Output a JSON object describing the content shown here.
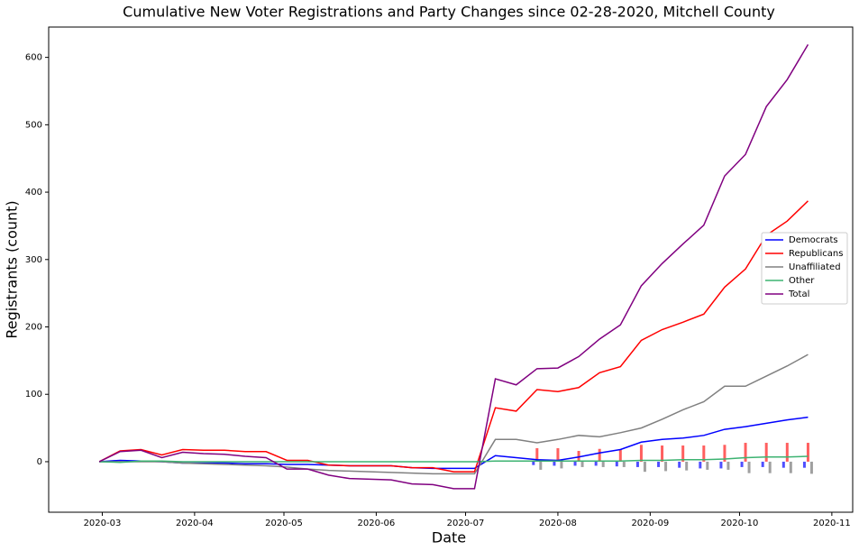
{
  "chart_data": {
    "type": "line",
    "title": "Cumulative New Voter Registrations and Party Changes since 02-28-2020, Mitchell County",
    "xlabel": "Date",
    "ylabel": "Registrants (count)",
    "x": [
      "2020-02-29",
      "2020-03-07",
      "2020-03-14",
      "2020-03-21",
      "2020-03-28",
      "2020-04-04",
      "2020-04-11",
      "2020-04-18",
      "2020-04-25",
      "2020-05-02",
      "2020-05-09",
      "2020-05-16",
      "2020-05-23",
      "2020-05-30",
      "2020-06-06",
      "2020-06-13",
      "2020-06-20",
      "2020-06-27",
      "2020-07-04",
      "2020-07-11",
      "2020-07-18",
      "2020-07-25",
      "2020-08-01",
      "2020-08-08",
      "2020-08-15",
      "2020-08-22",
      "2020-08-29",
      "2020-09-05",
      "2020-09-12",
      "2020-09-19",
      "2020-09-26",
      "2020-10-03",
      "2020-10-10",
      "2020-10-17",
      "2020-10-24"
    ],
    "series": [
      {
        "name": "Democrats",
        "color": "#0000ff",
        "values": [
          0,
          2,
          1,
          0,
          -2,
          -2,
          -2,
          -3,
          -3,
          -4,
          -4,
          -5,
          -6,
          -6,
          -6,
          -9,
          -10,
          -10,
          -10,
          9,
          6,
          3,
          2,
          7,
          13,
          18,
          29,
          33,
          35,
          39,
          48,
          52,
          57,
          62,
          66
        ]
      },
      {
        "name": "Republicans",
        "color": "#ff0000",
        "values": [
          0,
          16,
          18,
          10,
          18,
          17,
          17,
          15,
          15,
          2,
          2,
          -5,
          -6,
          -6,
          -6,
          -9,
          -9,
          -15,
          -15,
          80,
          75,
          107,
          104,
          110,
          132,
          141,
          180,
          196,
          207,
          219,
          259,
          286,
          336,
          357,
          387
        ]
      },
      {
        "name": "Unaffiliated",
        "color": "#808080",
        "values": [
          0,
          0,
          0,
          0,
          -2,
          -3,
          -4,
          -5,
          -6,
          -8,
          -11,
          -13,
          -14,
          -15,
          -16,
          -17,
          -18,
          -18,
          -18,
          33,
          33,
          28,
          33,
          39,
          37,
          43,
          50,
          63,
          77,
          89,
          112,
          112,
          127,
          142,
          159
        ]
      },
      {
        "name": "Other",
        "color": "#3cb371",
        "values": [
          0,
          -1,
          1,
          1,
          0,
          0,
          0,
          0,
          0,
          0,
          0,
          0,
          0,
          0,
          0,
          0,
          0,
          0,
          0,
          1,
          1,
          1,
          1,
          1,
          1,
          1,
          2,
          2,
          3,
          3,
          4,
          6,
          7,
          7,
          8
        ]
      },
      {
        "name": "Total",
        "color": "#800080",
        "values": [
          0,
          15,
          17,
          6,
          14,
          12,
          11,
          8,
          6,
          -11,
          -11,
          -20,
          -25,
          -26,
          -27,
          -33,
          -34,
          -40,
          -40,
          123,
          114,
          138,
          139,
          156,
          182,
          203,
          261,
          294,
          323,
          351,
          424,
          456,
          527,
          567,
          619
        ]
      }
    ],
    "bars": {
      "x": [
        "2020-07-25",
        "2020-08-01",
        "2020-08-08",
        "2020-08-15",
        "2020-08-22",
        "2020-08-29",
        "2020-09-05",
        "2020-09-12",
        "2020-09-19",
        "2020-09-26",
        "2020-10-03",
        "2020-10-10",
        "2020-10-17",
        "2020-10-24"
      ],
      "series": [
        {
          "color": "#4f4fff",
          "values": [
            -5,
            -6,
            -6,
            -6,
            -7,
            -8,
            -8,
            -9,
            -10,
            -10,
            -8,
            -8,
            -9,
            -9
          ]
        },
        {
          "color": "#ff5f5f",
          "values": [
            20,
            20,
            16,
            19,
            18,
            25,
            24,
            24,
            24,
            25,
            28,
            28,
            28,
            28
          ]
        },
        {
          "color": "#a0a0a0",
          "values": [
            -12,
            -10,
            -8,
            -8,
            -8,
            -15,
            -14,
            -13,
            -12,
            -12,
            -17,
            -17,
            -17,
            -18
          ]
        }
      ]
    },
    "xlim": [
      "2020-02-12",
      "2020-11-08"
    ],
    "xticks": [
      {
        "value": "2020-03-01",
        "label": "2020-03"
      },
      {
        "value": "2020-04-01",
        "label": "2020-04"
      },
      {
        "value": "2020-05-01",
        "label": "2020-05"
      },
      {
        "value": "2020-06-01",
        "label": "2020-06"
      },
      {
        "value": "2020-07-01",
        "label": "2020-07"
      },
      {
        "value": "2020-08-01",
        "label": "2020-08"
      },
      {
        "value": "2020-09-01",
        "label": "2020-09"
      },
      {
        "value": "2020-10-01",
        "label": "2020-10"
      },
      {
        "value": "2020-11-01",
        "label": "2020-11"
      }
    ],
    "ylim": [
      -75,
      645
    ],
    "yticks": [
      0,
      100,
      200,
      300,
      400,
      500,
      600
    ],
    "grid": false,
    "legend": "right"
  }
}
